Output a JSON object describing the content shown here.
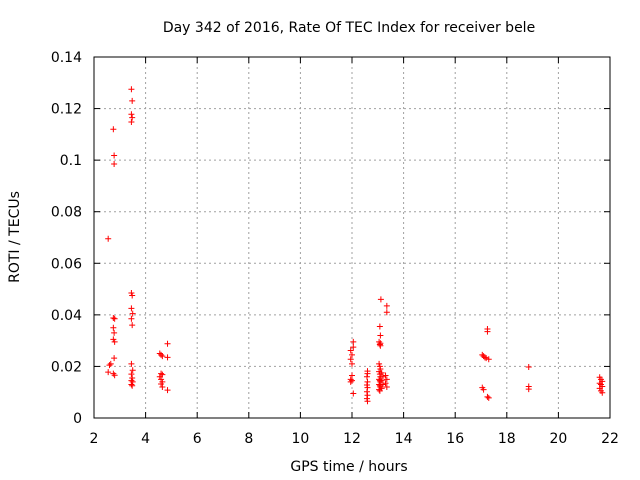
{
  "chart_data": {
    "type": "scatter",
    "title": "Day 342 of 2016, Rate Of TEC Index for receiver bele",
    "xlabel": "GPS time / hours",
    "ylabel": "ROTI / TECUs",
    "xlim": [
      2,
      22
    ],
    "ylim": [
      0,
      0.14
    ],
    "xticks": [
      2,
      4,
      6,
      8,
      10,
      12,
      14,
      16,
      18,
      20,
      22
    ],
    "xtick_labels": [
      "2",
      "4",
      "6",
      "8",
      "10",
      "12",
      "14",
      "16",
      "18",
      "20",
      "22"
    ],
    "yticks": [
      0,
      0.02,
      0.04,
      0.06,
      0.08,
      0.1,
      0.12,
      0.14
    ],
    "ytick_labels": [
      "0",
      "0.02",
      "0.04",
      "0.06",
      "0.08",
      "0.1",
      "0.12",
      "0.14"
    ],
    "grid": true,
    "marker": "+",
    "color": "#ff0000",
    "series": [
      {
        "name": "ROTI",
        "points": [
          [
            2.55,
            0.0695
          ],
          [
            2.6,
            0.0205
          ],
          [
            2.55,
            0.0178
          ],
          [
            2.65,
            0.021
          ],
          [
            2.75,
            0.112
          ],
          [
            2.78,
            0.1018
          ],
          [
            2.78,
            0.0985
          ],
          [
            2.75,
            0.0388
          ],
          [
            2.8,
            0.0385
          ],
          [
            2.75,
            0.035
          ],
          [
            2.78,
            0.033
          ],
          [
            2.75,
            0.0305
          ],
          [
            2.8,
            0.0295
          ],
          [
            2.78,
            0.0232
          ],
          [
            2.75,
            0.0172
          ],
          [
            2.8,
            0.0166
          ],
          [
            3.45,
            0.1275
          ],
          [
            3.48,
            0.123
          ],
          [
            3.45,
            0.1178
          ],
          [
            3.48,
            0.1165
          ],
          [
            3.45,
            0.1148
          ],
          [
            3.45,
            0.0485
          ],
          [
            3.48,
            0.0475
          ],
          [
            3.45,
            0.0425
          ],
          [
            3.5,
            0.0405
          ],
          [
            3.45,
            0.0385
          ],
          [
            3.48,
            0.036
          ],
          [
            3.45,
            0.021
          ],
          [
            3.5,
            0.0185
          ],
          [
            3.45,
            0.017
          ],
          [
            3.48,
            0.0155
          ],
          [
            3.45,
            0.0145
          ],
          [
            3.5,
            0.014
          ],
          [
            3.45,
            0.013
          ],
          [
            3.48,
            0.0125
          ],
          [
            4.55,
            0.025
          ],
          [
            4.6,
            0.0245
          ],
          [
            4.65,
            0.024
          ],
          [
            4.6,
            0.0172
          ],
          [
            4.65,
            0.0168
          ],
          [
            4.55,
            0.016
          ],
          [
            4.6,
            0.015
          ],
          [
            4.65,
            0.014
          ],
          [
            4.6,
            0.0132
          ],
          [
            4.65,
            0.012
          ],
          [
            4.85,
            0.0288
          ],
          [
            4.85,
            0.0235
          ],
          [
            4.85,
            0.0108
          ],
          [
            11.95,
            0.0262
          ],
          [
            12.0,
            0.0245
          ],
          [
            11.95,
            0.0228
          ],
          [
            12.0,
            0.021
          ],
          [
            12.05,
            0.0295
          ],
          [
            12.05,
            0.0275
          ],
          [
            12.0,
            0.0165
          ],
          [
            11.95,
            0.015
          ],
          [
            12.0,
            0.0145
          ],
          [
            11.95,
            0.014
          ],
          [
            12.05,
            0.0095
          ],
          [
            12.6,
            0.0182
          ],
          [
            12.6,
            0.0172
          ],
          [
            12.58,
            0.016
          ],
          [
            12.6,
            0.014
          ],
          [
            12.58,
            0.0128
          ],
          [
            12.6,
            0.0118
          ],
          [
            12.58,
            0.0102
          ],
          [
            12.6,
            0.0088
          ],
          [
            12.58,
            0.0075
          ],
          [
            12.6,
            0.0065
          ],
          [
            13.08,
            0.0355
          ],
          [
            13.1,
            0.032
          ],
          [
            13.05,
            0.0295
          ],
          [
            13.1,
            0.029
          ],
          [
            13.08,
            0.0285
          ],
          [
            13.1,
            0.028
          ],
          [
            13.05,
            0.021
          ],
          [
            13.08,
            0.02
          ],
          [
            13.1,
            0.019
          ],
          [
            13.05,
            0.018
          ],
          [
            13.08,
            0.017
          ],
          [
            13.1,
            0.016
          ],
          [
            13.05,
            0.015
          ],
          [
            13.08,
            0.0145
          ],
          [
            13.1,
            0.014
          ],
          [
            13.05,
            0.013
          ],
          [
            13.08,
            0.0125
          ],
          [
            13.1,
            0.012
          ],
          [
            13.05,
            0.011
          ],
          [
            13.08,
            0.0105
          ],
          [
            13.15,
            0.0175
          ],
          [
            13.2,
            0.016
          ],
          [
            13.15,
            0.0145
          ],
          [
            13.2,
            0.013
          ],
          [
            13.15,
            0.0115
          ],
          [
            13.12,
            0.046
          ],
          [
            13.35,
            0.0435
          ],
          [
            13.35,
            0.041
          ],
          [
            13.3,
            0.0165
          ],
          [
            13.35,
            0.015
          ],
          [
            13.3,
            0.0135
          ],
          [
            13.35,
            0.012
          ],
          [
            17.05,
            0.0245
          ],
          [
            17.1,
            0.024
          ],
          [
            17.15,
            0.0235
          ],
          [
            17.2,
            0.0232
          ],
          [
            17.3,
            0.0228
          ],
          [
            17.25,
            0.0345
          ],
          [
            17.25,
            0.0335
          ],
          [
            17.05,
            0.0118
          ],
          [
            17.1,
            0.011
          ],
          [
            17.25,
            0.0082
          ],
          [
            17.3,
            0.0078
          ],
          [
            18.85,
            0.0198
          ],
          [
            18.85,
            0.0122
          ],
          [
            18.85,
            0.0112
          ],
          [
            21.6,
            0.0158
          ],
          [
            21.65,
            0.015
          ],
          [
            21.7,
            0.0142
          ],
          [
            21.6,
            0.0135
          ],
          [
            21.65,
            0.013
          ],
          [
            21.7,
            0.0122
          ],
          [
            21.6,
            0.0115
          ],
          [
            21.65,
            0.0105
          ],
          [
            21.7,
            0.0098
          ]
        ]
      }
    ]
  }
}
